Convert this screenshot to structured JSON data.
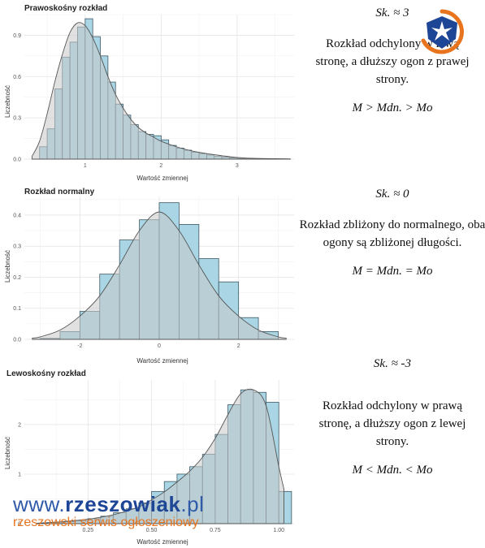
{
  "chart_data": [
    {
      "type": "bar",
      "title": "Prawoskośny rozkład",
      "xlabel": "Wartość zmiennej",
      "ylabel": "Liczebność",
      "xlim": [
        0.2,
        3.75
      ],
      "ylim": [
        0,
        1.05
      ],
      "xticks": [
        1,
        2,
        3
      ],
      "xtick_labels": [
        "1",
        "2",
        "3"
      ],
      "yticks": [
        0,
        0.3,
        0.6,
        0.9
      ],
      "ytick_labels": [
        "0.0",
        "0.3",
        "0.6",
        "0.9"
      ],
      "bin_width": 0.1,
      "bin_starts": [
        0.4,
        0.5,
        0.6,
        0.7,
        0.8,
        0.9,
        1.0,
        1.1,
        1.2,
        1.3,
        1.4,
        1.5,
        1.6,
        1.7,
        1.8,
        1.9,
        2.0,
        2.1,
        2.2,
        2.3,
        2.4,
        2.5,
        2.6,
        2.7,
        2.8,
        2.9,
        3.0,
        3.1
      ],
      "values": [
        0.09,
        0.22,
        0.51,
        0.74,
        0.85,
        0.96,
        1.02,
        0.89,
        0.75,
        0.56,
        0.4,
        0.32,
        0.25,
        0.2,
        0.18,
        0.17,
        0.14,
        0.1,
        0.08,
        0.065,
        0.05,
        0.04,
        0.03,
        0.02,
        0.015,
        0.01,
        0.005,
        0.003
      ],
      "density_x": [
        0.3,
        0.4,
        0.5,
        0.6,
        0.7,
        0.8,
        0.9,
        1.0,
        1.1,
        1.2,
        1.3,
        1.4,
        1.5,
        1.6,
        1.7,
        1.8,
        1.9,
        2.0,
        2.2,
        2.4,
        2.6,
        2.8,
        3.0,
        3.2,
        3.5,
        3.7
      ],
      "density_y": [
        0.02,
        0.13,
        0.33,
        0.56,
        0.76,
        0.92,
        0.99,
        0.97,
        0.88,
        0.75,
        0.6,
        0.47,
        0.37,
        0.29,
        0.23,
        0.19,
        0.16,
        0.13,
        0.09,
        0.06,
        0.04,
        0.025,
        0.012,
        0.006,
        0.003,
        0.002
      ]
    },
    {
      "type": "bar",
      "title": "Rozkład normalny",
      "xlabel": "Wartość zmiennej",
      "ylabel": "Liczebność",
      "xlim": [
        -3.4,
        3.4
      ],
      "ylim": [
        0,
        0.46
      ],
      "xticks": [
        -2,
        0,
        2
      ],
      "xtick_labels": [
        "-2",
        "0",
        "2"
      ],
      "yticks": [
        0,
        0.1,
        0.2,
        0.3,
        0.4
      ],
      "ytick_labels": [
        "0.0",
        "0.1",
        "0.2",
        "0.3",
        "0.4"
      ],
      "bin_width": 0.5,
      "bin_starts": [
        -3.0,
        -2.5,
        -2.0,
        -1.5,
        -1.0,
        -0.5,
        0.0,
        0.5,
        1.0,
        1.5,
        2.0,
        2.5
      ],
      "values": [
        0.003,
        0.025,
        0.09,
        0.21,
        0.32,
        0.385,
        0.44,
        0.37,
        0.26,
        0.185,
        0.07,
        0.025
      ],
      "density_x": [
        -3.2,
        -3.0,
        -2.5,
        -2.0,
        -1.5,
        -1.0,
        -0.5,
        0.0,
        0.5,
        1.0,
        1.5,
        2.0,
        2.5,
        3.0,
        3.2
      ],
      "density_y": [
        0.004,
        0.008,
        0.03,
        0.075,
        0.14,
        0.24,
        0.35,
        0.41,
        0.35,
        0.24,
        0.14,
        0.075,
        0.03,
        0.008,
        0.004
      ]
    },
    {
      "type": "bar",
      "title": "Lewoskośny rozkład",
      "xlabel": "Wartość zmiennej",
      "ylabel": "Liczebność",
      "xlim": [
        0.0,
        1.06
      ],
      "ylim": [
        0,
        2.9
      ],
      "xticks": [
        0.25,
        0.5,
        0.75,
        1.0
      ],
      "xtick_labels": [
        "0.25",
        "0.50",
        "0.75",
        "1.00"
      ],
      "yticks": [
        0,
        1,
        2
      ],
      "ytick_labels": [
        "0",
        "1",
        "2"
      ],
      "bin_width": 0.05,
      "bin_starts": [
        0.05,
        0.1,
        0.15,
        0.2,
        0.25,
        0.3,
        0.35,
        0.4,
        0.45,
        0.5,
        0.55,
        0.6,
        0.65,
        0.7,
        0.75,
        0.8,
        0.85,
        0.9,
        0.95,
        1.0
      ],
      "values": [
        0.01,
        0.02,
        0.04,
        0.06,
        0.1,
        0.15,
        0.22,
        0.3,
        0.42,
        0.65,
        0.85,
        1.0,
        1.15,
        1.4,
        1.8,
        2.4,
        2.7,
        2.65,
        2.45,
        0.65
      ],
      "density_x": [
        0.05,
        0.15,
        0.25,
        0.35,
        0.45,
        0.5,
        0.55,
        0.6,
        0.65,
        0.7,
        0.75,
        0.8,
        0.85,
        0.9,
        0.95,
        1.0,
        1.02
      ],
      "density_y": [
        0.01,
        0.04,
        0.09,
        0.18,
        0.34,
        0.48,
        0.64,
        0.84,
        1.06,
        1.34,
        1.72,
        2.2,
        2.62,
        2.7,
        2.38,
        1.15,
        0.7
      ]
    }
  ],
  "descriptions": [
    {
      "sk": "Sk. ≈ 3",
      "text": "Rozkład odchylony w lewą stronę, a dłuższy ogon z prawej strony.",
      "relation": "M > Mdn. > Mo"
    },
    {
      "sk": "Sk. ≈ 0",
      "text": "Rozkład zbliżony do normalnego, oba ogony są zbliżonej długości.",
      "relation": "M = Mdn. = Mo"
    },
    {
      "sk": "Sk. ≈ -3",
      "text": "Rozkład odchylony w prawą stronę, a dłuższy ogon z lewej strony.",
      "relation": "M < Mdn. < Mo"
    }
  ],
  "watermark": {
    "prefix": "www.",
    "name": "rzeszowiak",
    "suffix": ".pl",
    "tagline": "rzeszowski serwis ogłoszeniowy"
  },
  "logo": {
    "icon": "cross-shield-logo-icon",
    "colors": [
      "#1e4696",
      "#e8741e"
    ]
  },
  "colors": {
    "bar_fill": "#a9d5e4",
    "bar_stroke": "#3f5963",
    "density_fill": "#c8c8c8",
    "watermark_blue": "#1e4696",
    "watermark_orange": "#e8741e"
  }
}
